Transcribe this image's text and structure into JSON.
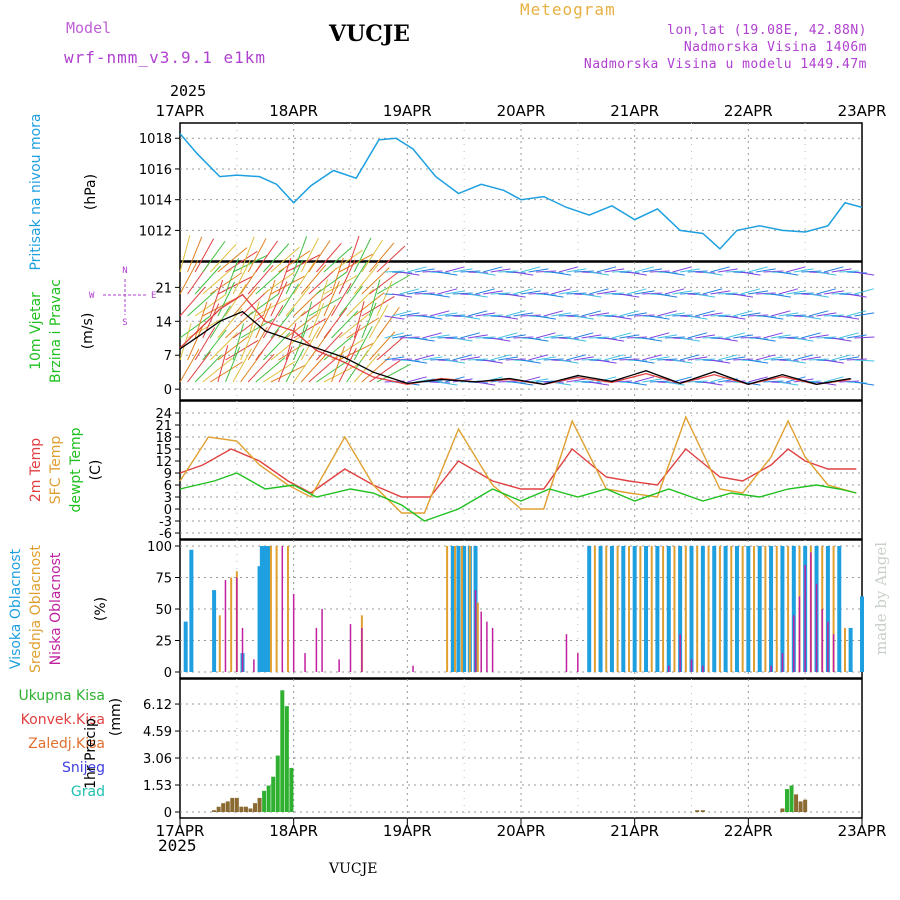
{
  "header": {
    "model_label": "Model",
    "model_value": "wrf-nmm_v3.9.1  e1km",
    "station": "VUCJE",
    "title": "Meteogram",
    "coords": "lon,lat (19.08E, 42.88N)",
    "elevation": "Nadmorska Visina 1406m",
    "model_elevation": "Nadmorska Visina u modelu 1449.47m",
    "year_top": "2025",
    "year_bottom": "2025",
    "station_bottom": "VUCJE",
    "credit": "made by Angel"
  },
  "colors": {
    "pressure": "#1ea0e0",
    "wind_label": "#20c020",
    "temp2m": "#e04040",
    "sfc_temp": "#e0a030",
    "dewpt": "#20c020",
    "cloud_high": "#1ea0e0",
    "cloud_mid": "#e0a030",
    "cloud_low": "#c020a0",
    "precip_total": "#30b030",
    "precip_conv": "#e04040",
    "precip_frozen": "#e07030",
    "snow": "#4040e0",
    "hail": "#20c0b0"
  },
  "chart_data": [
    {
      "type": "line",
      "panel": "pressure",
      "ylabel": [
        "Pritisak na nivou mora",
        "(hPa)"
      ],
      "yticks": [
        1012,
        1014,
        1016,
        1018
      ],
      "ylim": [
        1010.4,
        1018.6
      ],
      "x_days": [
        0,
        0.15,
        0.35,
        0.5,
        0.7,
        0.85,
        1.0,
        1.15,
        1.35,
        1.55,
        1.75,
        1.9,
        2.05,
        2.25,
        2.45,
        2.65,
        2.85,
        3.0,
        3.2,
        3.4,
        3.6,
        3.8,
        4.0,
        4.2,
        4.4,
        4.6,
        4.75,
        4.9,
        5.1,
        5.3,
        5.5,
        5.7,
        5.85,
        6.0
      ],
      "values": [
        1018.3,
        1017.0,
        1015.5,
        1015.6,
        1015.5,
        1015.0,
        1013.8,
        1014.9,
        1015.9,
        1015.4,
        1017.9,
        1018.0,
        1017.3,
        1015.5,
        1014.4,
        1015.0,
        1014.6,
        1014.0,
        1014.2,
        1013.5,
        1013.0,
        1013.6,
        1012.7,
        1013.4,
        1012.0,
        1011.8,
        1010.8,
        1012.0,
        1012.3,
        1012.0,
        1011.9,
        1012.3,
        1013.8,
        1013.5
      ],
      "xticks": [
        "17APR",
        "18APR",
        "19APR",
        "20APR",
        "21APR",
        "22APR",
        "23APR"
      ],
      "grid": true
    },
    {
      "type": "line",
      "panel": "wind",
      "ylabel": [
        "10m Vjetar",
        "Brzina i Pravac",
        "(m/s)"
      ],
      "compass": [
        "N",
        "W",
        "E",
        "S"
      ],
      "yticks": [
        0,
        7,
        14,
        21
      ],
      "ylim": [
        -1,
        25
      ],
      "x_days": [
        0,
        0.2,
        0.35,
        0.55,
        0.75,
        1.0,
        1.2,
        1.45,
        1.7,
        2.0,
        2.3,
        2.6,
        2.9,
        3.2,
        3.5,
        3.8,
        4.1,
        4.4,
        4.7,
        5.0,
        5.3,
        5.6,
        5.9
      ],
      "speed": [
        8.3,
        11.5,
        14.0,
        16.0,
        12.0,
        10.0,
        8.5,
        6.5,
        3.5,
        1.2,
        2.0,
        1.5,
        2.2,
        1.0,
        2.8,
        1.6,
        3.8,
        1.2,
        3.6,
        1.0,
        3.0,
        1.0,
        2.2
      ],
      "gust": [
        8.5,
        13.0,
        16.5,
        19.5,
        14.0,
        12.0,
        8.0,
        5.5,
        2.5,
        1.0,
        2.2,
        1.5,
        2.0,
        1.0,
        2.4,
        1.4,
        3.2,
        1.2,
        3.0,
        1.0,
        2.6,
        1.0,
        2.0
      ],
      "grid": true
    },
    {
      "type": "line",
      "panel": "temperature",
      "ylabel": [
        "2m Temp",
        "SFC Temp",
        "dewpt Temp",
        "(C)"
      ],
      "yticks": [
        -6,
        -3,
        0,
        3,
        6,
        9,
        12,
        15,
        18,
        21,
        24
      ],
      "ylim": [
        -6,
        25.5
      ],
      "series": [
        {
          "name": "2m Temp",
          "x_days": [
            0,
            0.2,
            0.45,
            0.7,
            0.95,
            1.15,
            1.45,
            1.7,
            1.95,
            2.2,
            2.45,
            2.75,
            3.0,
            3.2,
            3.45,
            3.75,
            3.95,
            4.2,
            4.45,
            4.75,
            4.95,
            5.2,
            5.35,
            5.5,
            5.7,
            5.95
          ],
          "values": [
            9,
            11,
            15,
            12,
            7,
            4,
            10,
            6,
            3,
            3,
            12,
            7,
            5,
            5,
            15,
            8,
            7,
            6,
            15,
            8,
            7,
            11,
            15,
            12,
            10,
            10
          ]
        },
        {
          "name": "SFC Temp",
          "x_days": [
            0,
            0.25,
            0.5,
            0.7,
            0.95,
            1.15,
            1.45,
            1.7,
            1.95,
            2.15,
            2.45,
            2.75,
            3.0,
            3.2,
            3.45,
            3.75,
            3.95,
            4.2,
            4.45,
            4.75,
            4.95,
            5.2,
            5.35,
            5.5,
            5.7,
            5.95
          ],
          "values": [
            7,
            18,
            17,
            11,
            6,
            3,
            18,
            6,
            -1,
            -1,
            20,
            6,
            0,
            0,
            22,
            5,
            4,
            3,
            23,
            5,
            4,
            13,
            22,
            13,
            6,
            4
          ]
        },
        {
          "name": "dewpt Temp",
          "x_days": [
            0,
            0.3,
            0.5,
            0.75,
            1.0,
            1.2,
            1.5,
            1.7,
            1.95,
            2.15,
            2.45,
            2.75,
            3.0,
            3.25,
            3.5,
            3.75,
            4.0,
            4.3,
            4.6,
            4.85,
            5.1,
            5.35,
            5.6,
            5.8,
            5.95
          ],
          "values": [
            5,
            7,
            9,
            5,
            6,
            3,
            5,
            4,
            1,
            -3,
            0,
            5,
            2,
            5,
            3,
            5,
            2,
            5,
            2,
            4,
            3,
            5,
            6,
            5,
            4
          ]
        }
      ],
      "grid": true
    },
    {
      "type": "bar",
      "panel": "clouds",
      "ylabel": [
        "Visoka Oblacnost",
        "Srednja Oblacnost",
        "Niska Oblacnost",
        "(%)"
      ],
      "yticks": [
        0,
        25,
        50,
        75,
        100
      ],
      "ylim": [
        0,
        100
      ],
      "series": [
        {
          "name": "Visoka Oblacnost",
          "x_days": [
            0.05,
            0.1,
            0.3,
            0.55,
            0.7,
            0.72,
            0.75,
            0.78,
            2.4,
            2.45,
            2.5,
            2.55,
            2.6,
            3.6,
            3.7,
            3.8,
            3.9,
            4.0,
            4.1,
            4.2,
            4.3,
            4.4,
            4.5,
            4.6,
            4.7,
            4.8,
            4.9,
            5.0,
            5.1,
            5.2,
            5.3,
            5.4,
            5.5,
            5.6,
            5.7,
            5.8,
            5.9,
            6.0
          ],
          "values": [
            40,
            97,
            65,
            15,
            84,
            100,
            100,
            100,
            100,
            100,
            100,
            100,
            100,
            100,
            100,
            100,
            100,
            100,
            100,
            100,
            100,
            100,
            100,
            100,
            100,
            100,
            100,
            100,
            100,
            100,
            100,
            100,
            100,
            100,
            100,
            100,
            35,
            60
          ]
        },
        {
          "name": "Srednja Oblacnost",
          "x_days": [
            0.35,
            0.45,
            0.5,
            0.8,
            0.85,
            0.95,
            1.6,
            2.35,
            2.42,
            2.48,
            2.55,
            2.62,
            3.65,
            3.75,
            3.85,
            3.95,
            4.05,
            4.15,
            4.25,
            4.35,
            4.45,
            4.55,
            4.65,
            4.75,
            4.85,
            4.95,
            5.05,
            5.15,
            5.25,
            5.35,
            5.45,
            5.55,
            5.65,
            5.75,
            5.85
          ],
          "values": [
            45,
            75,
            80,
            100,
            100,
            100,
            45,
            100,
            100,
            100,
            100,
            55,
            100,
            100,
            100,
            100,
            100,
            100,
            100,
            100,
            100,
            100,
            100,
            100,
            100,
            100,
            100,
            100,
            100,
            100,
            100,
            100,
            100,
            100,
            35
          ]
        },
        {
          "name": "Niska Oblacnost",
          "x_days": [
            0.4,
            0.5,
            0.55,
            0.65,
            0.9,
            1.0,
            1.1,
            1.2,
            1.25,
            1.4,
            1.5,
            1.6,
            2.05,
            2.6,
            2.65,
            2.7,
            2.75,
            3.4,
            3.5,
            4.3,
            4.4,
            4.5,
            4.6,
            5.2,
            5.3,
            5.4,
            5.45,
            5.5,
            5.55,
            5.6,
            5.65,
            5.7,
            5.75
          ],
          "values": [
            73,
            75,
            35,
            10,
            100,
            62,
            15,
            35,
            50,
            10,
            38,
            35,
            5,
            65,
            48,
            40,
            35,
            30,
            15,
            5,
            30,
            10,
            5,
            5,
            15,
            45,
            60,
            85,
            95,
            70,
            50,
            40,
            30
          ]
        }
      ],
      "grid": true
    },
    {
      "type": "bar",
      "panel": "precipitation",
      "ylabel": [
        "1hr Precip",
        "(mm)"
      ],
      "legend": [
        "Ukupna Kisa",
        "Konvek.Kisa",
        "Zaledj.Kisa",
        "Snijeg",
        "Grad"
      ],
      "yticks": [
        0,
        1.53,
        3.06,
        4.59,
        6.12
      ],
      "ylim": [
        0,
        7.2
      ],
      "x_days": [
        0.3,
        0.34,
        0.38,
        0.42,
        0.46,
        0.5,
        0.54,
        0.58,
        0.62,
        0.66,
        0.7,
        0.74,
        0.78,
        0.82,
        0.86,
        0.9,
        0.94,
        0.98,
        4.55,
        4.6,
        5.3,
        5.34,
        5.38,
        5.42,
        5.46,
        5.5
      ],
      "values": [
        0.1,
        0.3,
        0.5,
        0.6,
        0.8,
        0.8,
        0.3,
        0.3,
        0.2,
        0.5,
        0.8,
        1.2,
        1.5,
        2.0,
        3.2,
        6.9,
        6.0,
        2.5,
        0.1,
        0.1,
        0.2,
        1.3,
        1.5,
        1.0,
        0.6,
        0.7
      ],
      "xticks": [
        "17APR",
        "18APR",
        "19APR",
        "20APR",
        "21APR",
        "22APR",
        "23APR"
      ],
      "grid": true
    }
  ]
}
